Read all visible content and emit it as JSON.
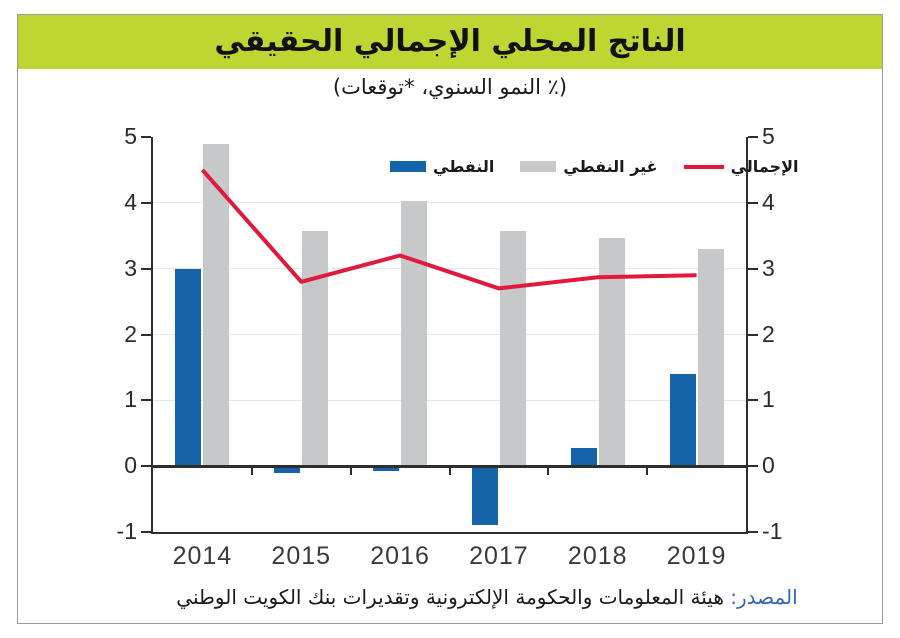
{
  "header": {
    "title": "الناتج المحلي الإجمالي الحقيقي",
    "subtitle": "(٪ النمو السنوي، *توقعات)"
  },
  "source": {
    "label": "المصدر:",
    "text": "هيئة المعلومات والحكومة الإلكترونية وتقديرات بنك الكويت الوطني"
  },
  "colors": {
    "banner_green": "#BDD631",
    "oil_blue": "#1563A8",
    "non_oil_gray": "#C7C8CA",
    "total_red": "#E1193A",
    "source_label_blue": "#3366B2",
    "axis_dark": "#2E2E2E",
    "gridline_gray": "#E7E7E7"
  },
  "chart_data": {
    "type": "bar",
    "subtype": "grouped bars with overlaid line, dual mirrored y-axes",
    "title": "الناتج المحلي الإجمالي الحقيقي",
    "subtitle": "(٪ النمو السنوي، *توقعات)",
    "categories": [
      "2014",
      "2015",
      "2016",
      "2017",
      "2018",
      "2019"
    ],
    "series": [
      {
        "key": "oil",
        "name": "النفطي",
        "kind": "bar",
        "color_key": "oil_blue",
        "values": [
          3.0,
          -0.1,
          -0.07,
          -0.9,
          0.27,
          1.4
        ]
      },
      {
        "key": "non_oil",
        "name": "غير النفطي",
        "kind": "bar",
        "color_key": "non_oil_gray",
        "values": [
          4.9,
          3.57,
          4.03,
          3.57,
          3.47,
          3.3
        ]
      },
      {
        "key": "total",
        "name": "الإجمالي",
        "kind": "line",
        "color_key": "total_red",
        "values": [
          4.5,
          2.8,
          3.2,
          2.7,
          2.87,
          2.9
        ]
      }
    ],
    "ylim": [
      -1,
      5
    ],
    "yticks": [
      5,
      4,
      3,
      2,
      1,
      0,
      -1
    ],
    "ytick_labels": [
      "5",
      "4",
      "3",
      "2",
      "1",
      "0",
      "-1"
    ],
    "grid": "faint horizontal gridlines at 1,2,3,4",
    "legend_position": "inside-top"
  }
}
